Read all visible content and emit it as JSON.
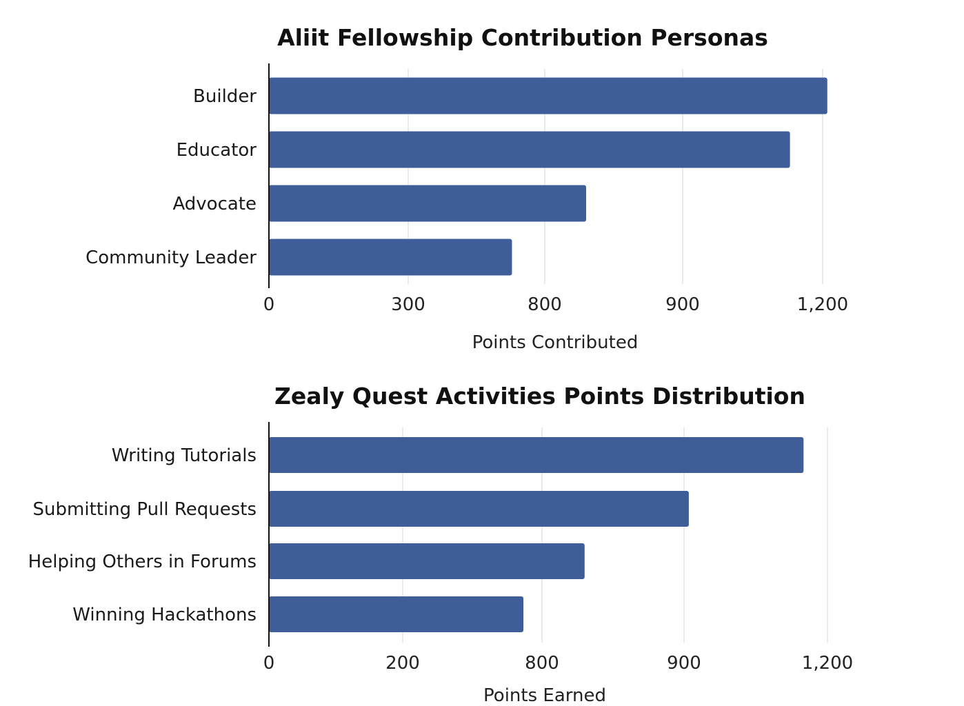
{
  "colors": {
    "bar": "#3f5e99",
    "grid": "#e4e4e4",
    "axis": "#111111"
  },
  "chart_data": [
    {
      "type": "bar",
      "orientation": "horizontal",
      "title": "Aliit Fellowship Contribution Personas",
      "xlabel": "Points Contributed",
      "ylabel": "",
      "categories": [
        "Builder",
        "Educator",
        "Advocate",
        "Community Leader"
      ],
      "values": [
        1210,
        1130,
        830,
        680
      ],
      "x_ticks": [
        "0",
        "300",
        "800",
        "900",
        "1,200"
      ],
      "grid": "vertical",
      "legend": "none"
    },
    {
      "type": "bar",
      "orientation": "horizontal",
      "title": "Zealy Quest Activities Points Distribution",
      "xlabel": "Points Earned",
      "ylabel": "",
      "categories": [
        "Writing Tutorials",
        "Submitting Pull Requests",
        "Helping Others in Forums",
        "Winning Hackathons"
      ],
      "values": [
        1150,
        910,
        830,
        720
      ],
      "x_ticks": [
        "0",
        "200",
        "800",
        "900",
        "1,200"
      ],
      "grid": "vertical",
      "legend": "none"
    }
  ]
}
